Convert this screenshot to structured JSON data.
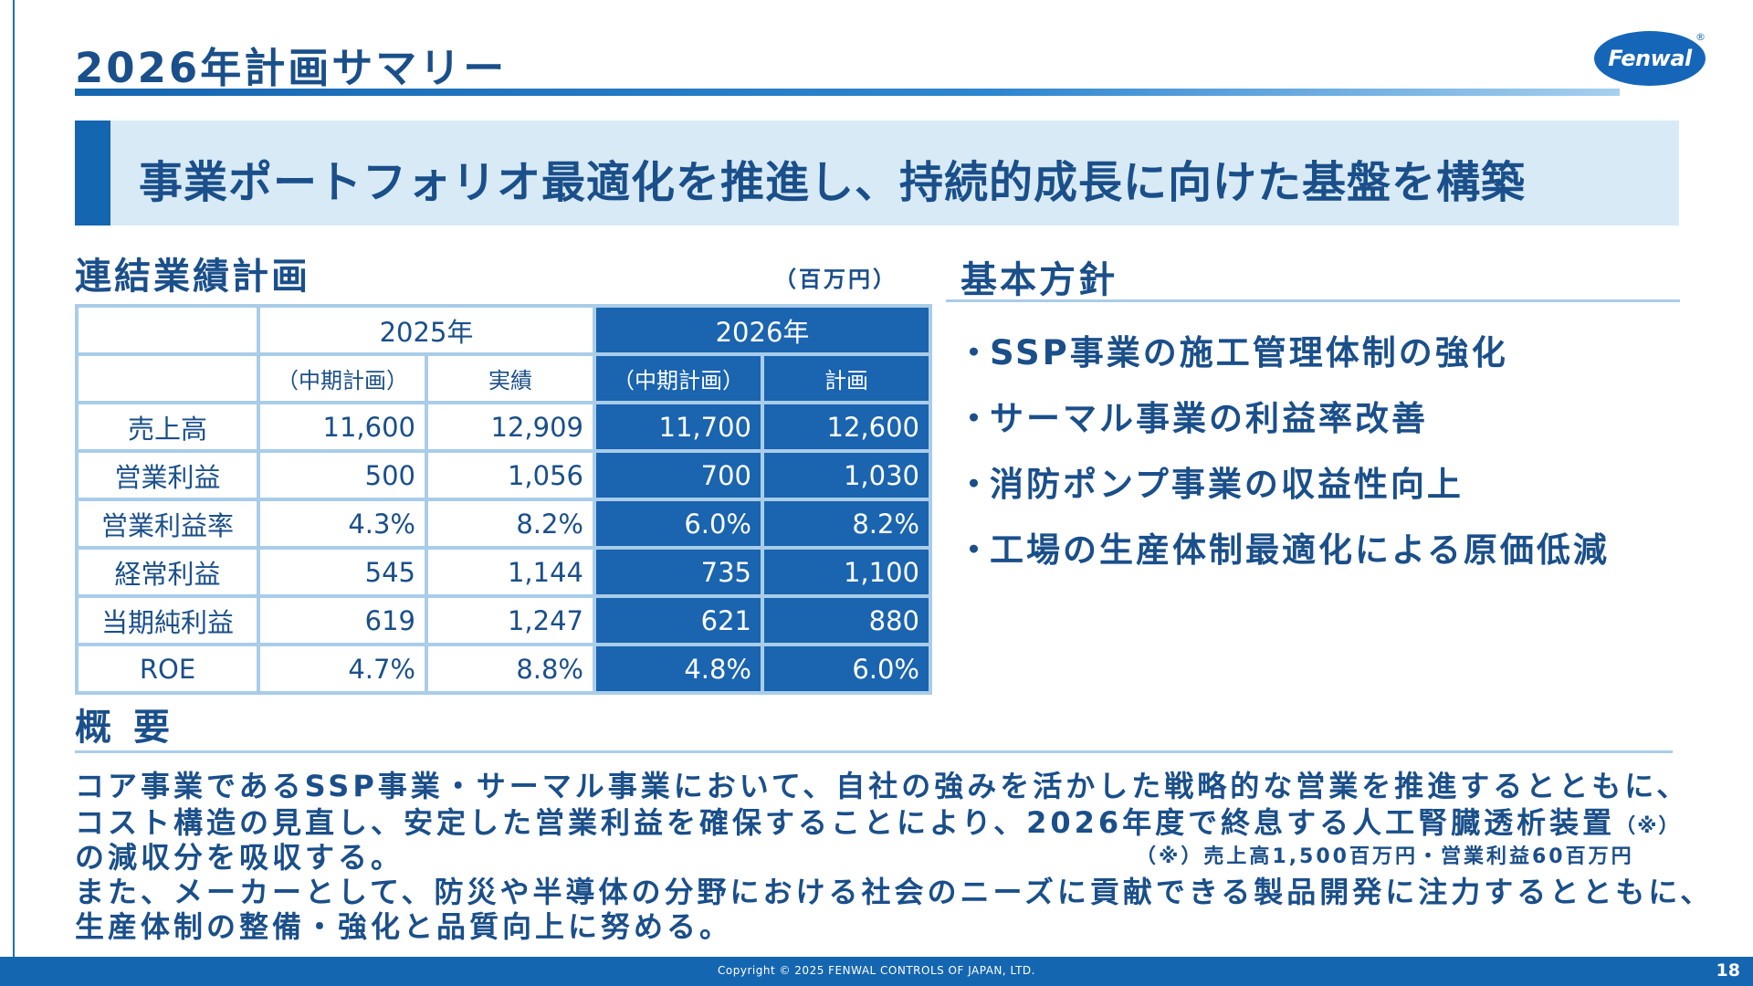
{
  "header": {
    "title": "2026年計画サマリー",
    "logo_text": "Fenwal",
    "logo_mark": "®"
  },
  "banner": {
    "text": "事業ポートフォリオ最適化を推進し、持続的成長に向けた基盤を構築"
  },
  "plan_table": {
    "title": "連結業績計画",
    "unit": "（百万円）",
    "year_headers": [
      "2025年",
      "2026年"
    ],
    "sub_headers": [
      "（中期計画）",
      "実績",
      "（中期計画）",
      "計画"
    ],
    "rows": [
      {
        "label": "売上高",
        "values": [
          "11,600",
          "12,909",
          "11,700",
          "12,600"
        ]
      },
      {
        "label": "営業利益",
        "values": [
          "500",
          "1,056",
          "700",
          "1,030"
        ]
      },
      {
        "label": "営業利益率",
        "values": [
          "4.3%",
          "8.2%",
          "6.0%",
          "8.2%"
        ]
      },
      {
        "label": "経常利益",
        "values": [
          "545",
          "1,144",
          "735",
          "1,100"
        ]
      },
      {
        "label": "当期純利益",
        "values": [
          "619",
          "1,247",
          "621",
          "880"
        ]
      },
      {
        "label": "ROE",
        "values": [
          "4.7%",
          "8.8%",
          "4.8%",
          "6.0%"
        ]
      }
    ]
  },
  "policy": {
    "title": "基本方針",
    "bullet": "・",
    "items": [
      "SSP事業の施工管理体制の強化",
      "サーマル事業の利益率改善",
      "消防ポンプ事業の収益性向上",
      "工場の生産体制最適化による原価低減"
    ]
  },
  "overview": {
    "title": "概要",
    "line1": "コア事業であるSSP事業・サーマル事業において、自社の強みを活かした戦略的な営業を推進するとともに、",
    "line2": "コスト構造の見直し、安定した営業利益を確保することにより、2026年度で終息する人工腎臓透析装置",
    "line2_mark": "（※）",
    "line3": "の減収分を吸収する。",
    "note": "（※）売上高1,500百万円・営業利益60百万円",
    "line4": "また、メーカーとして、防災や半導体の分野における社会のニーズに貢献できる製品開発に注力するとともに、",
    "line5": "生産体制の整備・強化と品質向上に努める。"
  },
  "footer": {
    "copyright": "Copyright © 2025 FENWAL CONTROLS OF JAPAN, LTD.",
    "page_number": "18"
  },
  "colors": {
    "primary": "#1a4f8a",
    "accent": "#1566b0",
    "dark_cell": "#1a64b0",
    "light_band": "#d7eaf5",
    "table_border": "#a9cde9"
  }
}
